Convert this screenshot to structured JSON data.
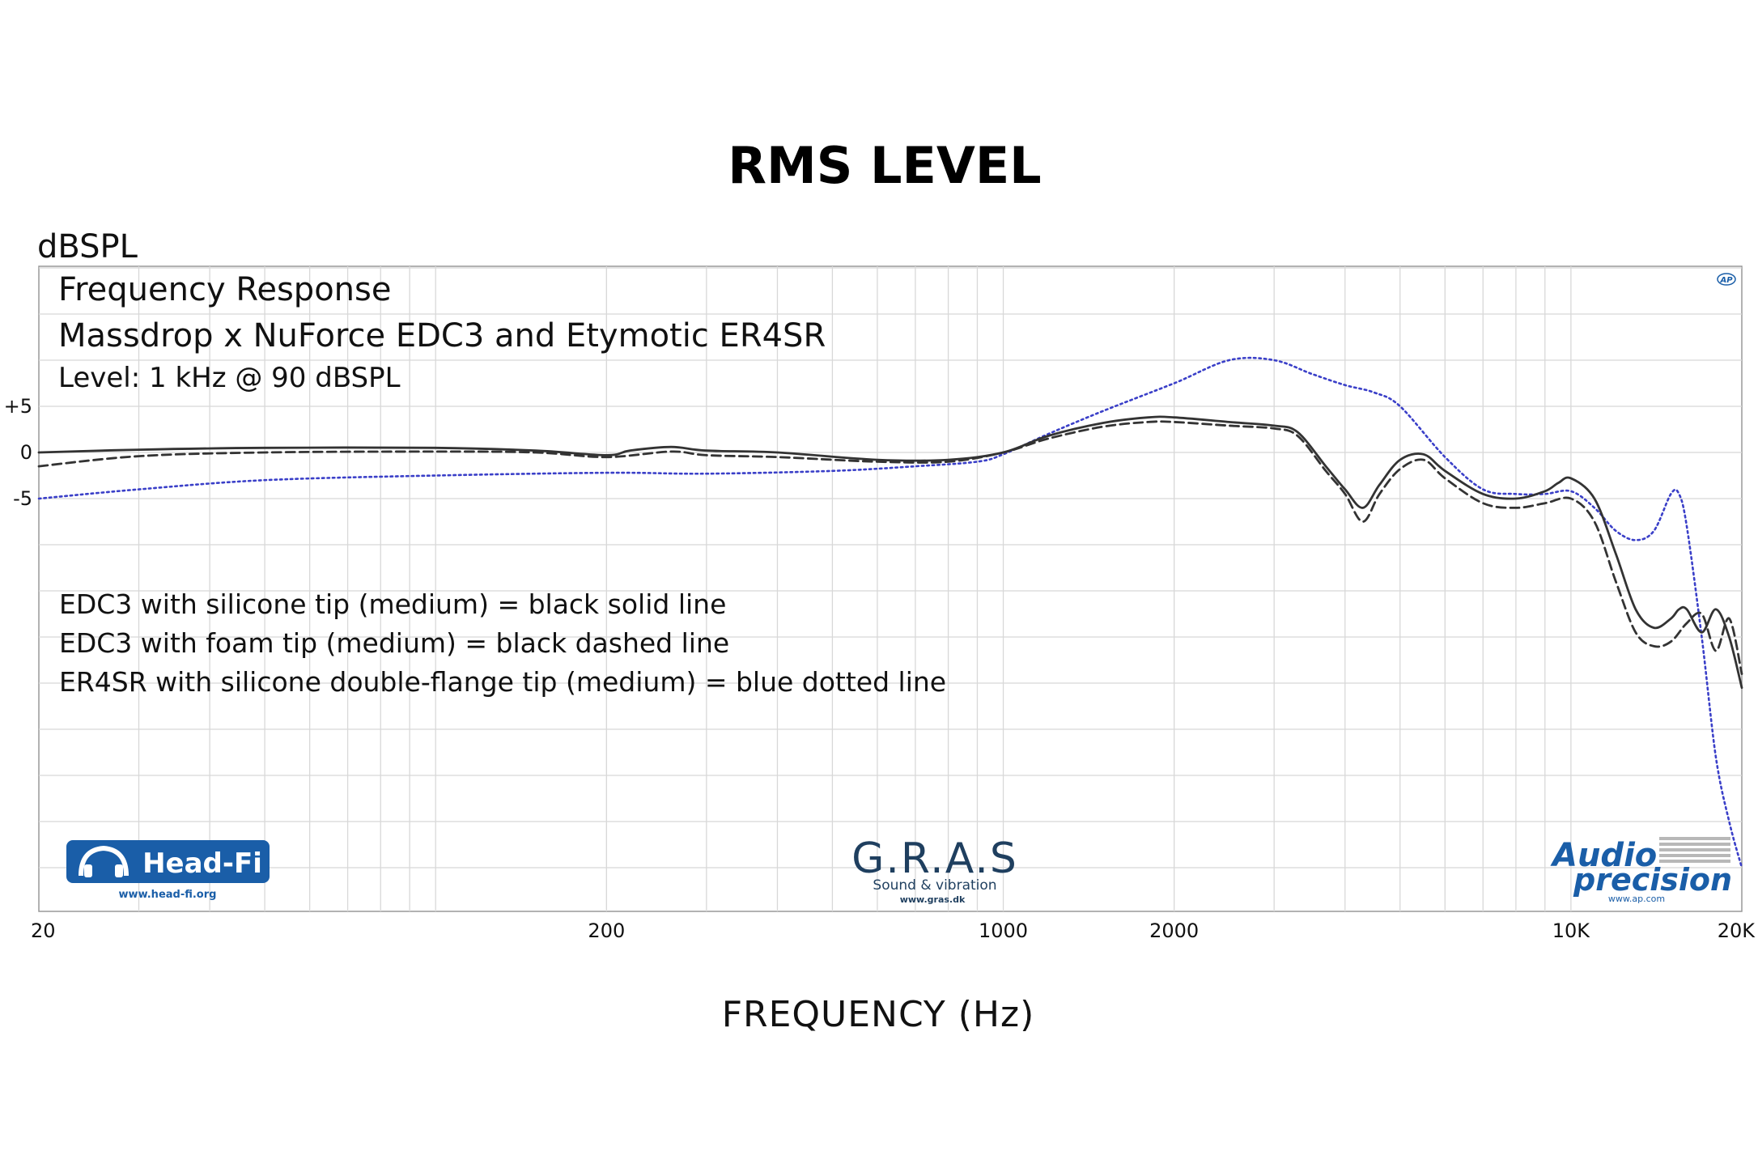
{
  "chart_data": {
    "type": "line",
    "title": "RMS LEVEL",
    "ylabel": "dBSPL",
    "xlabel": "FREQUENCY (Hz)",
    "xscale": "log",
    "xlim": [
      20,
      20000
    ],
    "ylim": [
      -50,
      20
    ],
    "x_tick_labels": [
      "20",
      "200",
      "1000",
      "2000",
      "10K",
      "20K"
    ],
    "x_tick_values": [
      20,
      200,
      1000,
      2000,
      10000,
      20000
    ],
    "y_tick_labels": [
      "+5",
      "0",
      "-5"
    ],
    "y_tick_values": [
      5,
      0,
      -5
    ],
    "annotations": {
      "line1": "Frequency Response",
      "line2": "Massdrop x NuForce EDC3 and Etymotic ER4SR",
      "line3": "Level: 1 kHz @ 90 dBSPL"
    },
    "legend": [
      "EDC3 with silicone tip (medium) = black solid line",
      "EDC3 with foam tip (medium) = black dashed line",
      "ER4SR with silicone double-flange tip (medium) = blue dotted line"
    ],
    "series": [
      {
        "name": "EDC3 with silicone tip (medium)",
        "style": "solid",
        "color": "#333333",
        "x": [
          20,
          30,
          50,
          100,
          150,
          200,
          220,
          260,
          300,
          400,
          600,
          800,
          1000,
          1200,
          1500,
          1800,
          2000,
          2500,
          3000,
          3300,
          3700,
          4000,
          4300,
          4600,
          5000,
          5500,
          6000,
          7000,
          8000,
          9000,
          9500,
          10000,
          11000,
          12000,
          13000,
          14000,
          15000,
          15500,
          16000,
          17000,
          18000,
          19000,
          20000
        ],
        "values": [
          0,
          0.3,
          0.5,
          0.5,
          0.2,
          -0.3,
          0.2,
          0.6,
          0.2,
          0,
          -0.8,
          -0.8,
          0,
          1.8,
          3.2,
          3.8,
          3.8,
          3.3,
          2.9,
          2.2,
          -1.5,
          -4,
          -6,
          -3.5,
          -0.8,
          -0.2,
          -2,
          -4.5,
          -5,
          -4.2,
          -3.3,
          -2.8,
          -5,
          -11,
          -17,
          -19,
          -18,
          -17,
          -17,
          -19.5,
          -17,
          -20,
          -25.5
        ]
      },
      {
        "name": "EDC3 with foam tip (medium)",
        "style": "dashed",
        "color": "#333333",
        "x": [
          20,
          30,
          50,
          100,
          150,
          200,
          260,
          300,
          400,
          600,
          800,
          1000,
          1200,
          1500,
          1800,
          2000,
          2500,
          3000,
          3300,
          3700,
          4000,
          4300,
          4600,
          5000,
          5500,
          6000,
          7000,
          8000,
          9000,
          10000,
          11000,
          12000,
          13000,
          14000,
          15000,
          16000,
          17000,
          18000,
          19000,
          20000
        ],
        "values": [
          -1.5,
          -0.4,
          0,
          0.1,
          0,
          -0.5,
          0.1,
          -0.3,
          -0.5,
          -1,
          -1,
          0,
          1.5,
          2.8,
          3.3,
          3.3,
          2.9,
          2.6,
          1.8,
          -2,
          -4.5,
          -7.5,
          -4.5,
          -1.8,
          -0.8,
          -2.8,
          -5.5,
          -6,
          -5.5,
          -5,
          -7.5,
          -14,
          -19.5,
          -21,
          -20.5,
          -18.5,
          -17.5,
          -21.5,
          -18,
          -24
        ]
      },
      {
        "name": "ER4SR with silicone double-flange tip (medium)",
        "style": "dotted",
        "color": "#3a3fc8",
        "x": [
          20,
          30,
          50,
          100,
          200,
          300,
          500,
          700,
          900,
          1000,
          1200,
          1500,
          2000,
          2500,
          3000,
          3500,
          4000,
          4500,
          5000,
          6000,
          7000,
          8000,
          9000,
          10000,
          11000,
          12000,
          13000,
          14000,
          15000,
          15500,
          16000,
          17000,
          18000,
          19000,
          20000
        ],
        "values": [
          -5,
          -4,
          -3,
          -2.5,
          -2.2,
          -2.3,
          -2,
          -1.5,
          -1,
          -0.2,
          2,
          4.5,
          7.5,
          10,
          10,
          8.5,
          7.3,
          6.5,
          5,
          -0.5,
          -4,
          -4.5,
          -4.5,
          -4.2,
          -6,
          -8.5,
          -9.5,
          -8.5,
          -4.5,
          -4.5,
          -8,
          -20,
          -33,
          -40,
          -45
        ]
      }
    ]
  },
  "logos": {
    "headfi": {
      "name": "Head-Fi",
      "url": "www.head-fi.org",
      "color": "#1a5ea8"
    },
    "gras": {
      "name": "G.R.A.S",
      "tagline": "Sound & vibration",
      "url": "www.gras.dk",
      "color": "#1f3f5f"
    },
    "ap": {
      "line1": "Audio",
      "line2": "precision",
      "url": "www.ap.com",
      "badge": "AP",
      "color": "#1a5ea8"
    }
  }
}
